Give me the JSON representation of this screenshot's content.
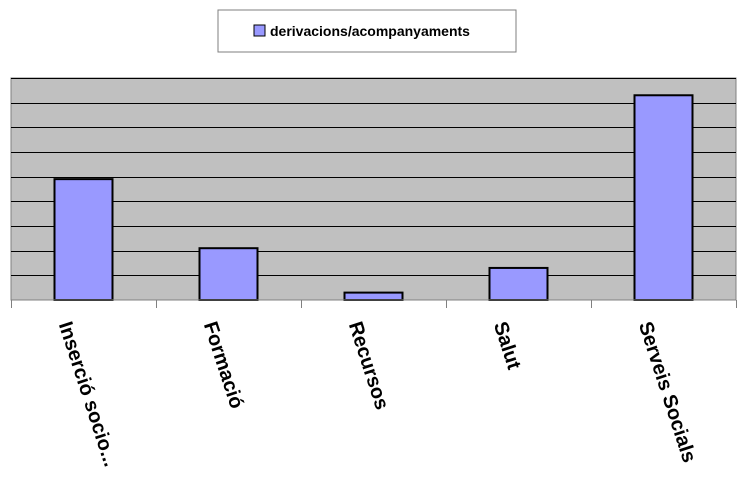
{
  "chart_data": {
    "type": "bar",
    "categories": [
      "Inserció socio...",
      "Formació",
      "Recursos",
      "Salut",
      "Serveis Socials"
    ],
    "series": [
      {
        "name": "derivacions/acompanyaments",
        "values": [
          49,
          21,
          3,
          13,
          83
        ],
        "color": "#9999ff"
      }
    ],
    "ylim": [
      0,
      90
    ],
    "grid": true,
    "legend_position": "top-center",
    "title": "",
    "xlabel": "",
    "ylabel": ""
  }
}
